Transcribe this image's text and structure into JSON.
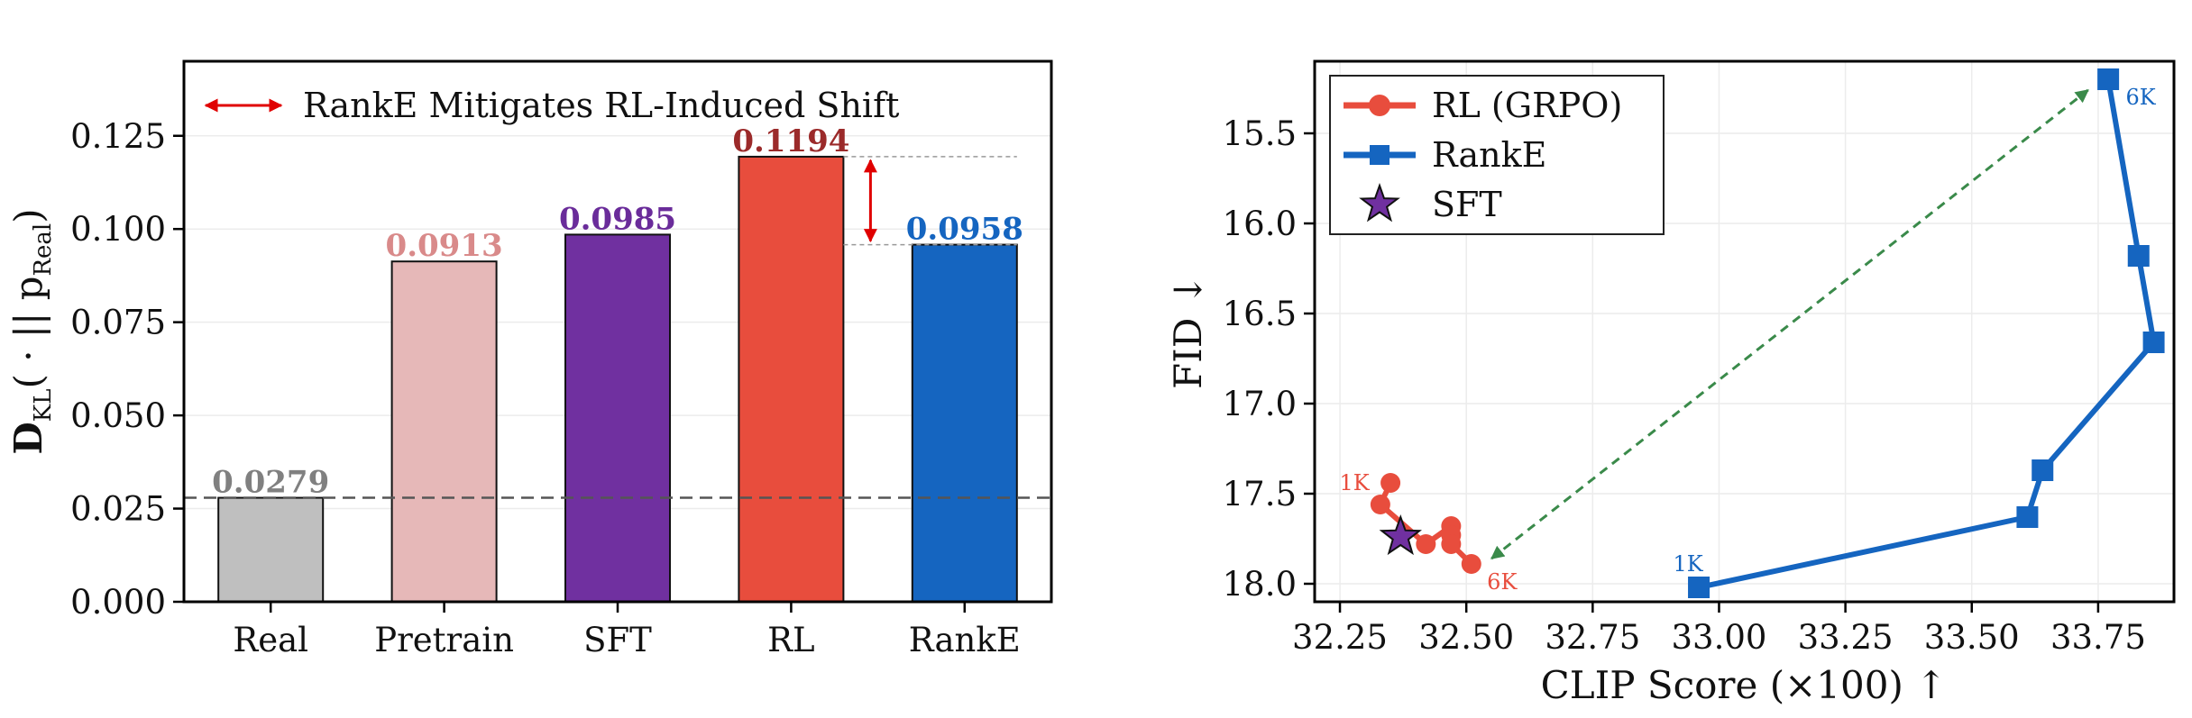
{
  "chart_data": [
    {
      "type": "bar",
      "categories": [
        "Real",
        "Pretrain",
        "SFT",
        "RL",
        "RankE"
      ],
      "values": [
        0.0279,
        0.0913,
        0.0985,
        0.1194,
        0.0958
      ],
      "value_labels": [
        "0.0279",
        "0.0913",
        "0.0985",
        "0.1194",
        "0.0958"
      ],
      "colors": [
        "#bfbfbf",
        "#e6b8b8",
        "#7030a0",
        "#e84d3d",
        "#1565c0"
      ],
      "label_colors": [
        "#808080",
        "#d98a8a",
        "#6a2c9a",
        "#9b2a2a",
        "#1565c0"
      ],
      "ylabel_main": "D",
      "ylabel_sub": "KL",
      "ylabel_rest": "( · || p",
      "ylabel_sub2": "Real",
      "ylabel_end": ")",
      "ylim": [
        0,
        0.145
      ],
      "yticks": [
        0.0,
        0.025,
        0.05,
        0.075,
        0.1,
        0.125
      ],
      "ytick_labels": [
        "0.000",
        "0.025",
        "0.050",
        "0.075",
        "0.100",
        "0.125"
      ],
      "reference_line": 0.0279,
      "legend": {
        "label": "RankE Mitigates RL-Induced Shift",
        "placement": "top-left",
        "color": "#e00000"
      },
      "shift_arrow": {
        "from": 0.1194,
        "to": 0.0958,
        "color": "#e00000"
      },
      "grid": true
    },
    {
      "type": "line",
      "xlabel": "CLIP Score (×100) ↑",
      "ylabel": "FID ↓",
      "xlim": [
        32.2,
        33.9
      ],
      "ylim": [
        18.1,
        15.1
      ],
      "y_inverted": true,
      "xticks": [
        32.25,
        32.5,
        32.75,
        33.0,
        33.25,
        33.5,
        33.75
      ],
      "xtick_labels": [
        "32.25",
        "32.50",
        "32.75",
        "33.00",
        "33.25",
        "33.50",
        "33.75"
      ],
      "yticks": [
        15.5,
        16.0,
        16.5,
        17.0,
        17.5,
        18.0
      ],
      "ytick_labels": [
        "15.5",
        "16.0",
        "16.5",
        "17.0",
        "17.5",
        "18.0"
      ],
      "series": [
        {
          "name": "RL (GRPO)",
          "color": "#e84d3d",
          "marker": "circle",
          "x": [
            32.35,
            32.33,
            32.42,
            32.47,
            32.47,
            32.47,
            32.51
          ],
          "y": [
            17.44,
            17.56,
            17.78,
            17.68,
            17.73,
            17.78,
            17.89
          ],
          "start_label": "1K",
          "end_label": "6K"
        },
        {
          "name": "RankE",
          "color": "#1565c0",
          "marker": "square",
          "x": [
            32.96,
            33.61,
            33.64,
            33.86,
            33.83,
            33.77
          ],
          "y": [
            18.02,
            17.63,
            17.37,
            16.66,
            16.18,
            15.2
          ],
          "start_label": "1K",
          "end_label": "6K"
        }
      ],
      "sft_point": {
        "name": "SFT",
        "x": 32.37,
        "y": 17.74,
        "color": "#7030a0",
        "marker": "star"
      },
      "shift_arrow": {
        "from": [
          32.55,
          17.86
        ],
        "to": [
          33.73,
          15.26
        ],
        "color": "#3a8a4a"
      },
      "legend_placement": "top-left",
      "grid": true
    }
  ]
}
